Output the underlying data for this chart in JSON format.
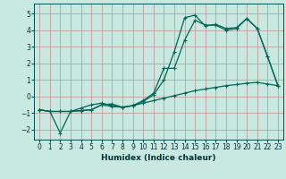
{
  "title": "",
  "xlabel": "Humidex (Indice chaleur)",
  "bg_color": "#c8e8e0",
  "grid_color": "#c0a0a0",
  "line_color": "#006655",
  "xlim": [
    -0.5,
    23.5
  ],
  "ylim": [
    -2.6,
    5.6
  ],
  "xticks": [
    0,
    1,
    2,
    3,
    4,
    5,
    6,
    7,
    8,
    9,
    10,
    11,
    12,
    13,
    14,
    15,
    16,
    17,
    18,
    19,
    20,
    21,
    22,
    23
  ],
  "yticks": [
    -2,
    -1,
    0,
    1,
    2,
    3,
    4,
    5
  ],
  "series1_x": [
    0,
    1,
    2,
    3,
    4,
    5,
    6,
    7,
    8,
    9,
    10,
    11,
    12,
    13,
    14,
    15,
    16,
    17,
    18,
    19,
    20,
    21,
    22,
    23
  ],
  "series1_y": [
    -0.8,
    -0.9,
    -2.2,
    -0.9,
    -0.85,
    -0.8,
    -0.5,
    -0.45,
    -0.65,
    -0.55,
    -0.4,
    -0.25,
    -0.1,
    0.05,
    0.2,
    0.35,
    0.45,
    0.55,
    0.65,
    0.72,
    0.8,
    0.85,
    0.75,
    0.65
  ],
  "series2_x": [
    0,
    1,
    2,
    3,
    4,
    5,
    6,
    7,
    8,
    9,
    10,
    11,
    12,
    13,
    14,
    15,
    16,
    17,
    18,
    19,
    20,
    21,
    22,
    23
  ],
  "series2_y": [
    -0.8,
    -0.9,
    -0.9,
    -0.9,
    -0.85,
    -0.8,
    -0.5,
    -0.6,
    -0.65,
    -0.55,
    -0.25,
    0.2,
    1.7,
    1.7,
    3.4,
    4.6,
    4.3,
    4.3,
    4.0,
    4.1,
    4.7,
    4.1,
    2.4,
    0.65
  ],
  "series3_x": [
    0,
    1,
    2,
    3,
    4,
    5,
    6,
    7,
    8,
    9,
    10,
    11,
    12,
    13,
    14,
    15,
    16,
    17,
    18,
    19,
    20,
    21,
    22,
    23
  ],
  "series3_y": [
    -0.8,
    -0.9,
    -0.9,
    -0.9,
    -0.7,
    -0.5,
    -0.4,
    -0.55,
    -0.65,
    -0.55,
    -0.3,
    0.1,
    1.0,
    2.7,
    4.75,
    4.9,
    4.25,
    4.35,
    4.1,
    4.15,
    4.7,
    4.1,
    2.4,
    0.65
  ]
}
